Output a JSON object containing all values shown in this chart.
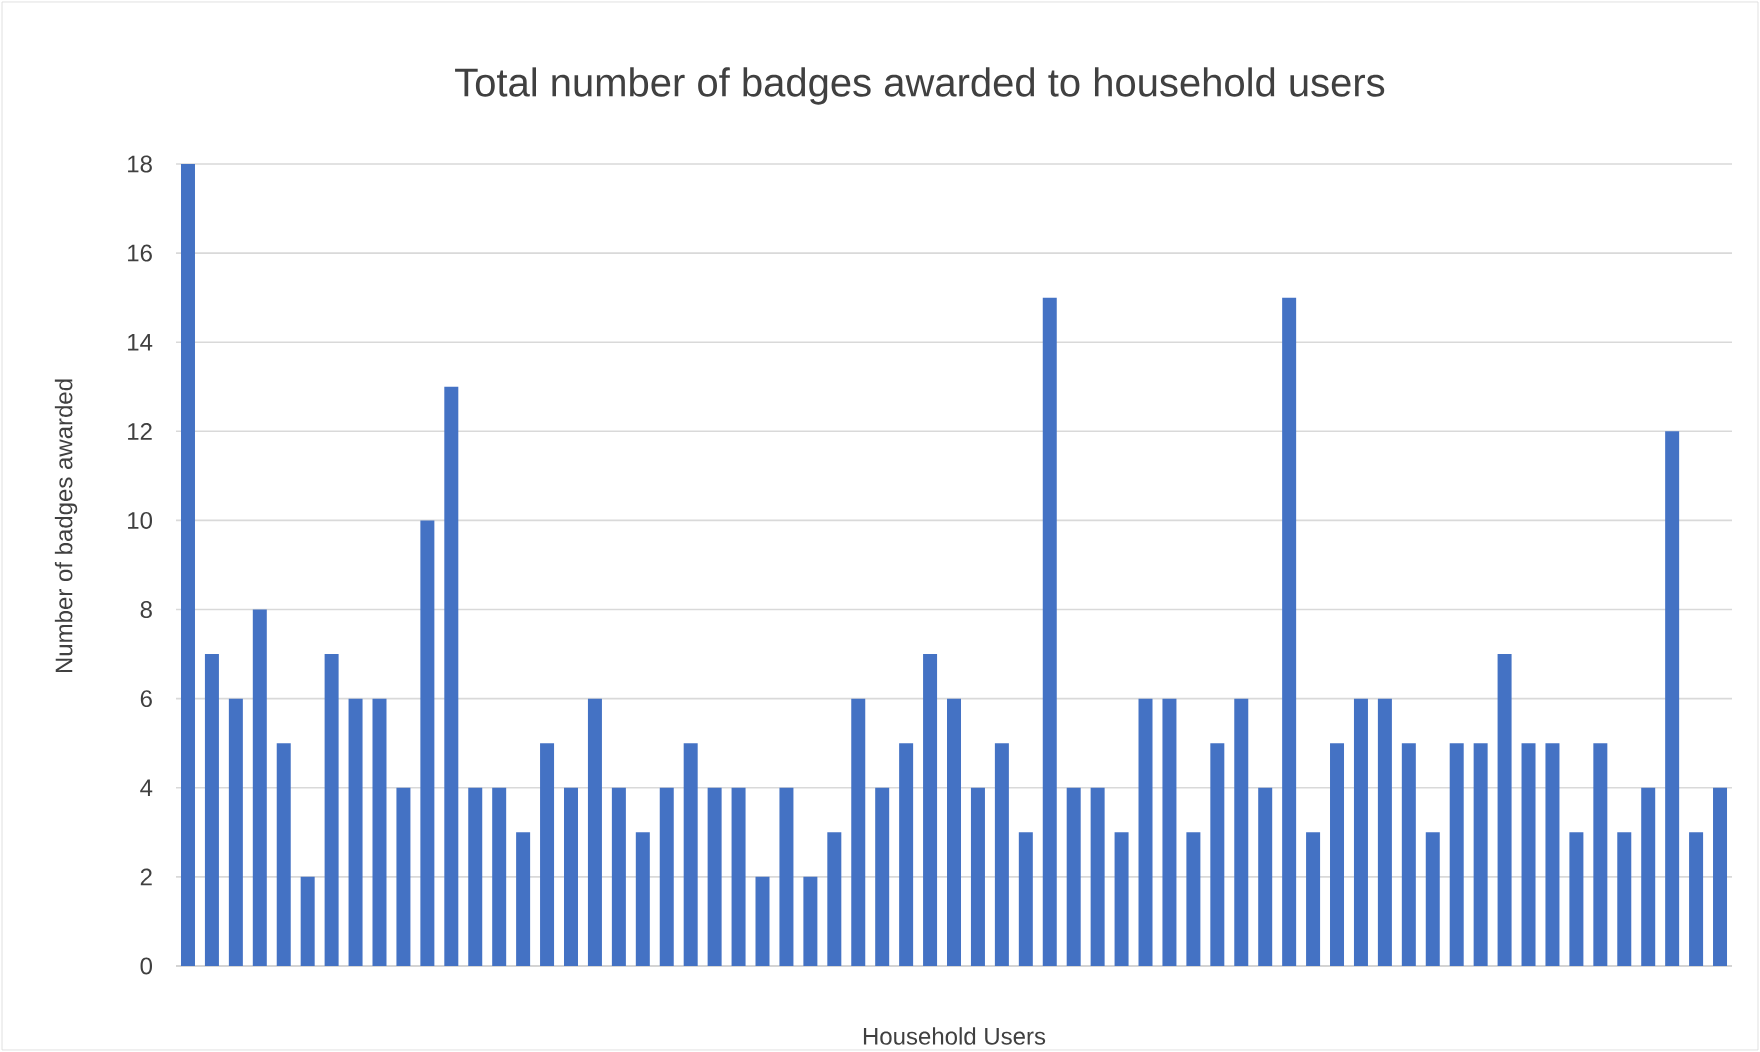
{
  "chart_data": {
    "type": "bar",
    "title": "Total number of badges awarded to household users",
    "xlabel": "Household Users",
    "ylabel": "Number of badges  awarded",
    "categories": [
      null,
      null,
      null,
      null,
      null,
      null,
      null,
      null,
      null,
      null,
      null,
      null,
      null,
      null,
      null,
      null,
      null,
      null,
      null,
      null,
      null,
      null,
      null,
      null,
      null,
      null,
      null,
      null,
      null,
      null,
      null,
      null,
      null,
      null,
      null,
      null,
      null,
      null,
      null,
      null,
      null,
      null,
      null,
      null,
      null,
      null,
      null,
      null,
      null,
      null,
      null,
      null,
      null,
      null,
      null,
      null,
      null,
      null,
      null,
      null,
      null,
      null,
      null,
      null,
      null
    ],
    "values": [
      18,
      7,
      6,
      8,
      5,
      2,
      7,
      6,
      6,
      4,
      10,
      13,
      4,
      4,
      3,
      5,
      4,
      6,
      4,
      3,
      4,
      5,
      4,
      4,
      2,
      4,
      2,
      3,
      6,
      4,
      5,
      7,
      6,
      4,
      5,
      3,
      15,
      4,
      4,
      3,
      6,
      6,
      3,
      5,
      6,
      4,
      15,
      3,
      5,
      6,
      6,
      5,
      3,
      5,
      5,
      7,
      5,
      5,
      3,
      5,
      3,
      4,
      12,
      3,
      4
    ],
    "color": "#4472c4",
    "ylim": [
      0,
      18
    ],
    "yticks": [
      0,
      2,
      4,
      6,
      8,
      10,
      12,
      14,
      16,
      18
    ],
    "grid": "y"
  }
}
